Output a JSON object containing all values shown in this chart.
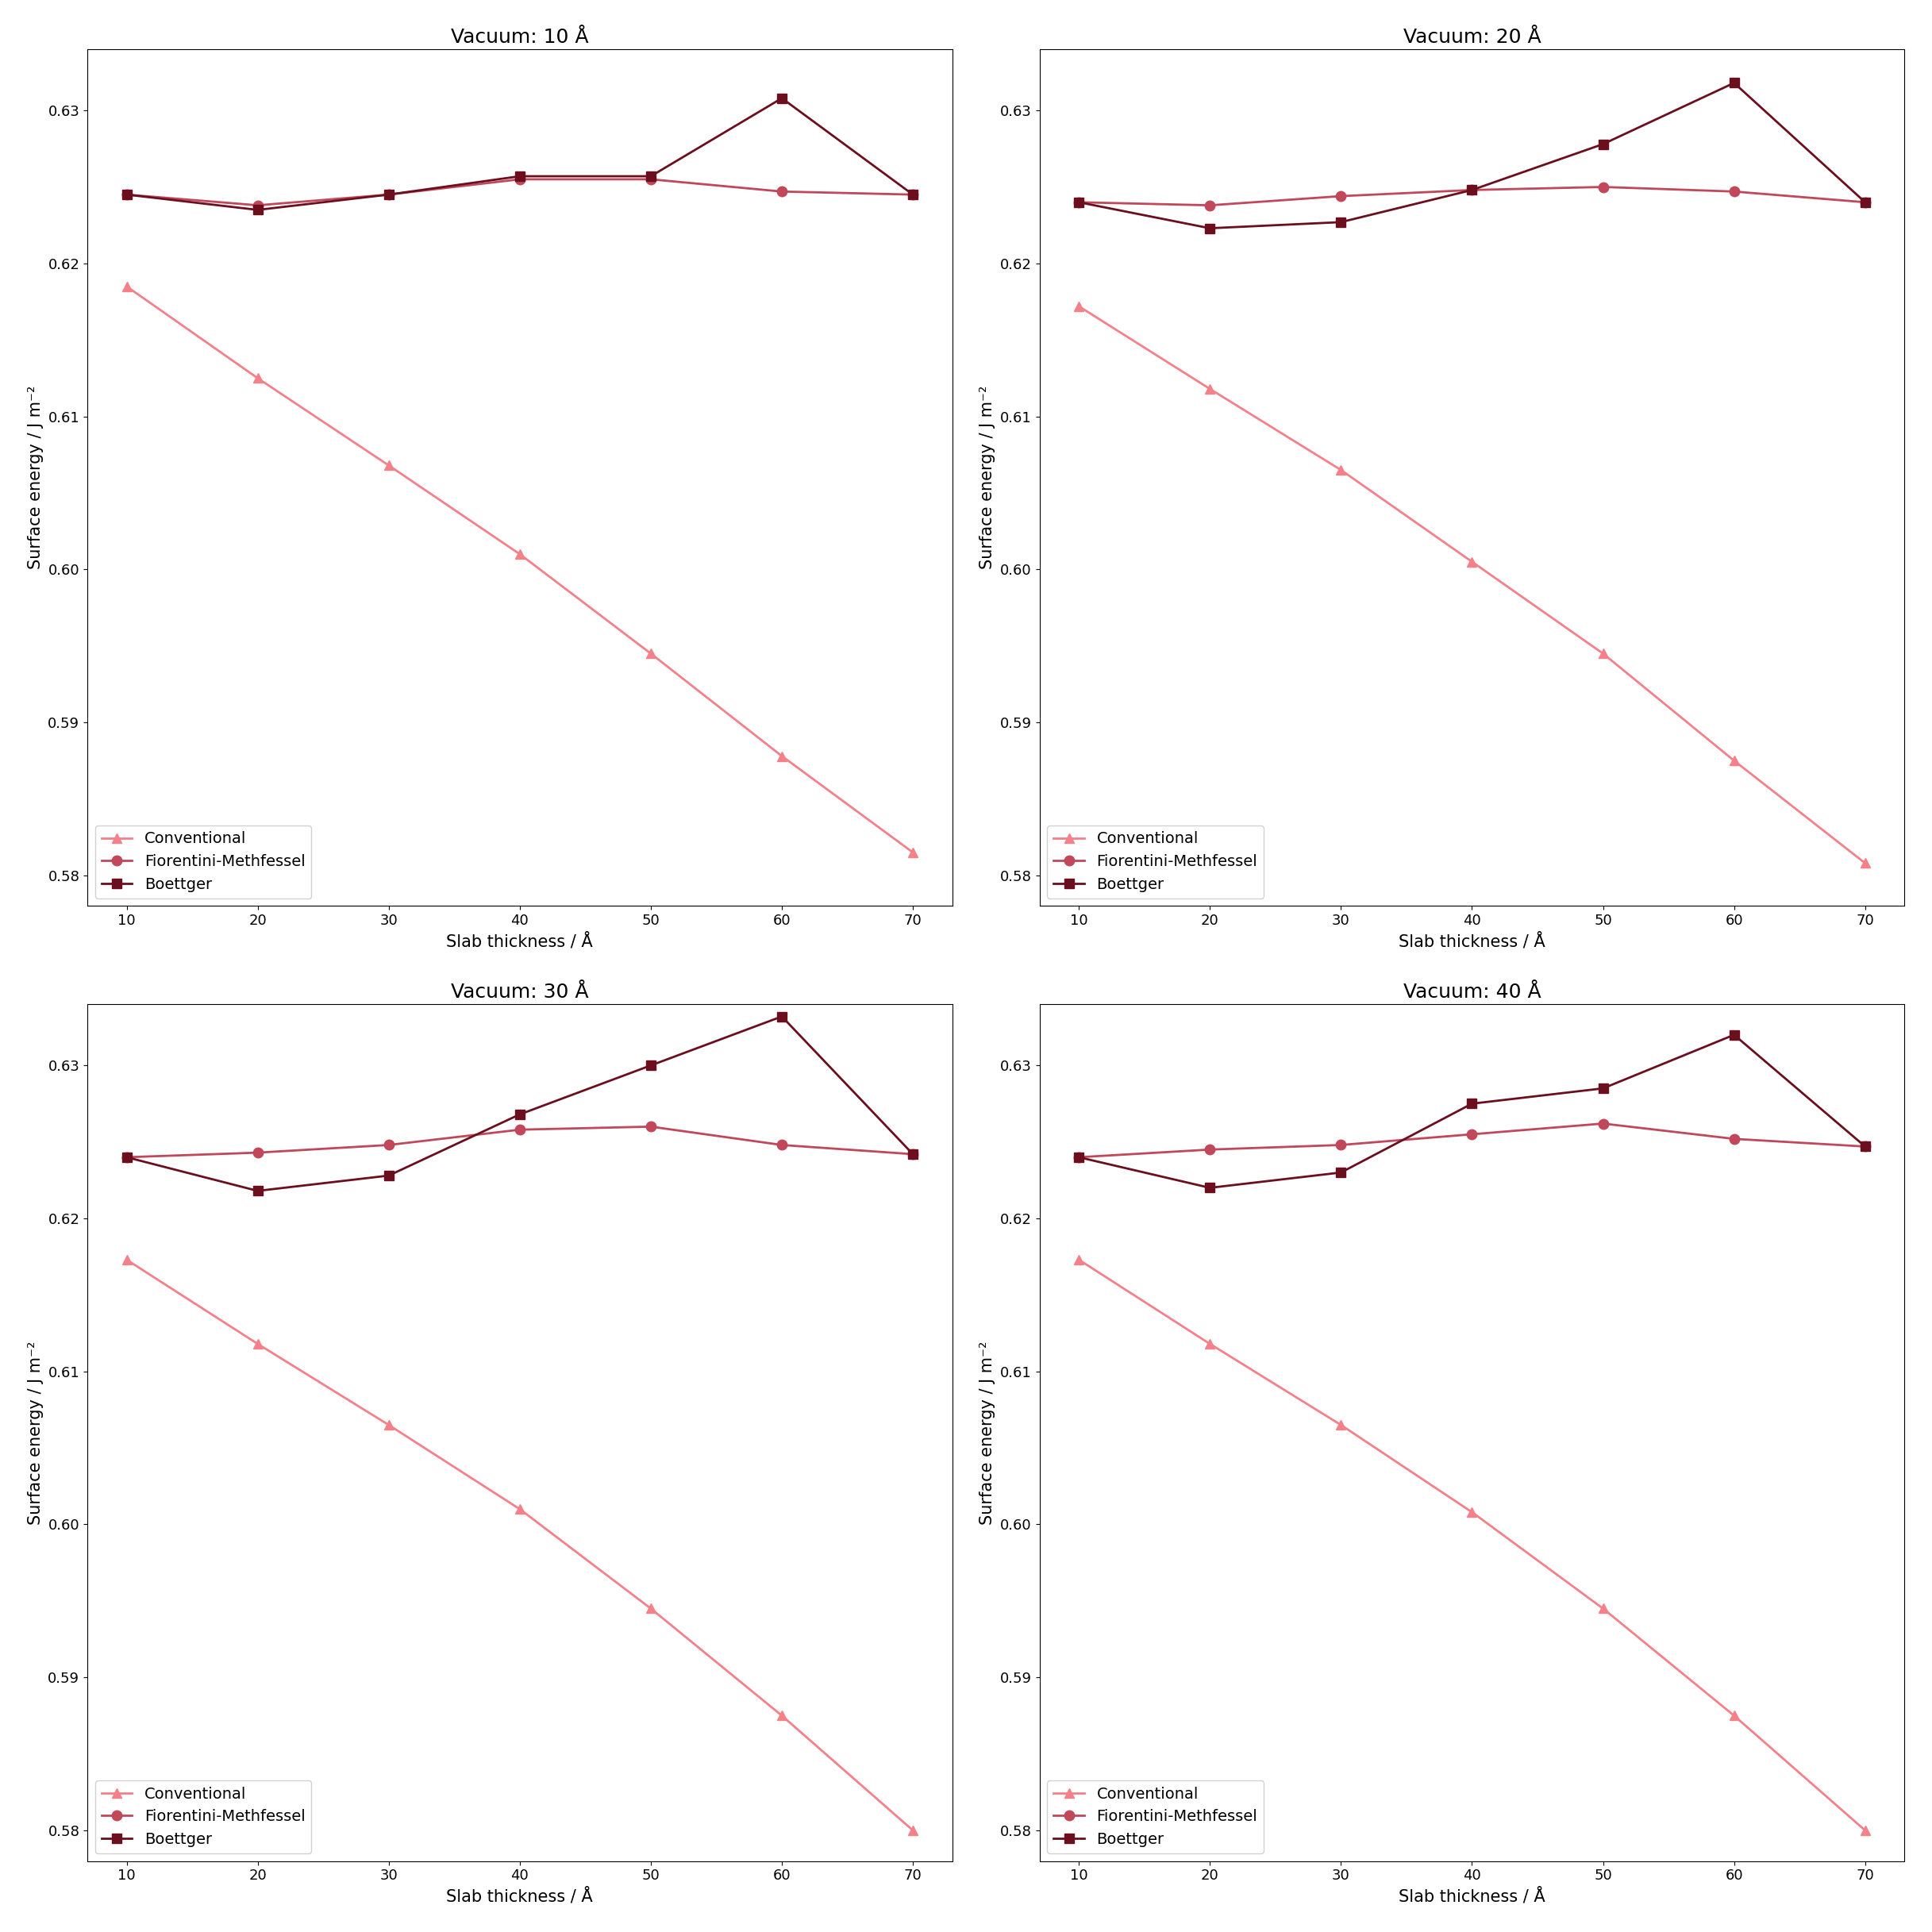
{
  "x": [
    10,
    20,
    30,
    40,
    50,
    60,
    70
  ],
  "panels": [
    {
      "title": "Vacuum: 10 Å",
      "conventional": [
        0.6185,
        0.6125,
        0.6068,
        0.601,
        0.5945,
        0.5878,
        0.5815
      ],
      "fiorentini": [
        0.6245,
        0.6238,
        0.6245,
        0.6255,
        0.6255,
        0.6247,
        0.6245
      ],
      "boettger": [
        0.6245,
        0.6235,
        0.6245,
        0.6257,
        0.6257,
        0.6308,
        0.6245
      ]
    },
    {
      "title": "Vacuum: 20 Å",
      "conventional": [
        0.6172,
        0.6118,
        0.6065,
        0.6005,
        0.5945,
        0.5875,
        0.5808
      ],
      "fiorentini": [
        0.624,
        0.6238,
        0.6244,
        0.6248,
        0.625,
        0.6247,
        0.624
      ],
      "boettger": [
        0.624,
        0.6223,
        0.6227,
        0.6248,
        0.6278,
        0.6318,
        0.624
      ]
    },
    {
      "title": "Vacuum: 30 Å",
      "conventional": [
        0.6173,
        0.6118,
        0.6065,
        0.601,
        0.5945,
        0.5875,
        0.58
      ],
      "fiorentini": [
        0.624,
        0.6243,
        0.6248,
        0.6258,
        0.626,
        0.6248,
        0.6242
      ],
      "boettger": [
        0.624,
        0.6218,
        0.6228,
        0.6268,
        0.63,
        0.6332,
        0.6242
      ]
    },
    {
      "title": "Vacuum: 40 Å",
      "conventional": [
        0.6173,
        0.6118,
        0.6065,
        0.6008,
        0.5945,
        0.5875,
        0.58
      ],
      "fiorentini": [
        0.624,
        0.6245,
        0.6248,
        0.6255,
        0.6262,
        0.6252,
        0.6247
      ],
      "boettger": [
        0.624,
        0.622,
        0.623,
        0.6275,
        0.6285,
        0.632,
        0.6247
      ]
    }
  ],
  "color_conventional": "#F4808A",
  "color_fiorentini": "#C0485A",
  "color_boettger": "#6B0E1E",
  "xlabel": "Slab thickness / Å",
  "ylabel": "Surface energy / J m⁻²",
  "ylim": [
    0.578,
    0.634
  ],
  "yticks": [
    0.58,
    0.59,
    0.6,
    0.61,
    0.62,
    0.63
  ],
  "xticks": [
    10,
    20,
    30,
    40,
    50,
    60,
    70
  ],
  "legend_labels": [
    "Conventional",
    "Fiorentini-Methfessel",
    "Boettger"
  ],
  "marker_conventional": "^",
  "marker_fiorentini": "o",
  "marker_boettger": "s",
  "markersize": 9,
  "linewidth": 2.0,
  "title_fontsize": 18,
  "label_fontsize": 15,
  "tick_fontsize": 13,
  "legend_fontsize": 14
}
